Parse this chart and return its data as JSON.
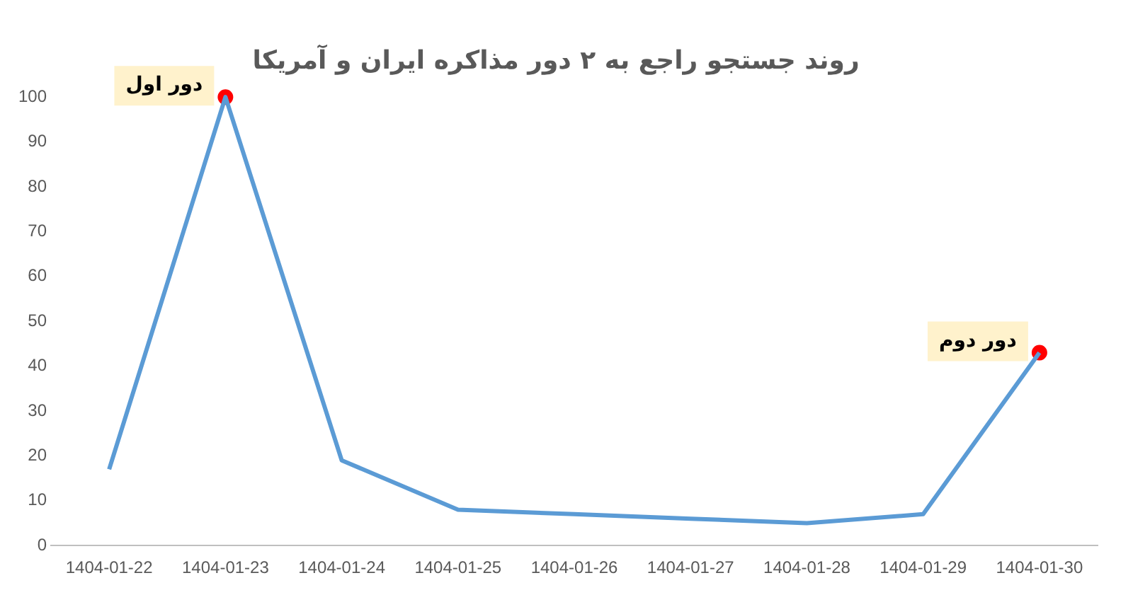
{
  "chart_data": {
    "type": "line",
    "title": "روند جستجو راجع به ۲ دور مذاکره ایران و آمریکا",
    "categories": [
      "1404-01-22",
      "1404-01-23",
      "1404-01-24",
      "1404-01-25",
      "1404-01-26",
      "1404-01-27",
      "1404-01-28",
      "1404-01-29",
      "1404-01-30"
    ],
    "series": [
      {
        "color": "#5b9bd5",
        "marker": "none",
        "values": [
          17,
          100,
          19,
          8,
          7,
          6,
          5,
          7,
          43
        ]
      },
      {
        "type": "scatter",
        "color": "#ff0000",
        "marker": "circle",
        "values": [
          null,
          100,
          null,
          null,
          null,
          null,
          null,
          null,
          43
        ]
      }
    ],
    "ylim": [
      0,
      100
    ],
    "yticks": [
      0,
      10,
      20,
      30,
      40,
      50,
      60,
      70,
      80,
      90,
      100
    ],
    "grid": false,
    "legend": false,
    "annotations": [
      {
        "text": "دور اول",
        "x": "1404-01-23",
        "y": 100
      },
      {
        "text": "دور دوم",
        "x": "1404-01-30",
        "y": 43
      }
    ]
  }
}
